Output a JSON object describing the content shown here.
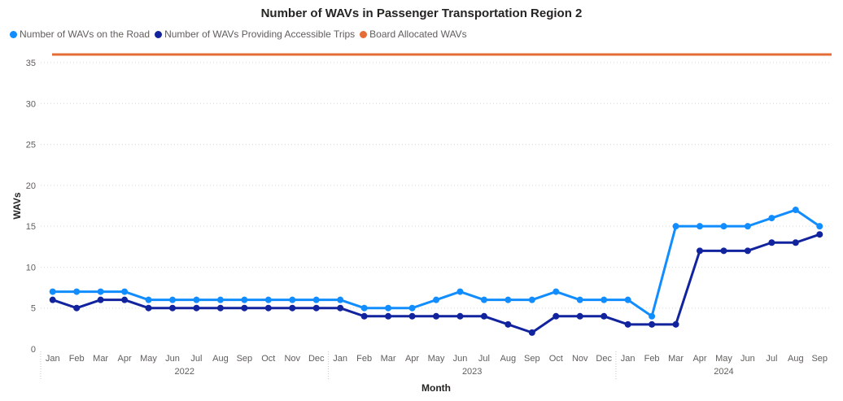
{
  "chart_data": {
    "type": "line",
    "title": "Number of WAVs in Passenger Transportation Region 2",
    "xlabel": "Month",
    "ylabel": "WAVs",
    "ylim": [
      0,
      35
    ],
    "yticks": [
      0,
      5,
      10,
      15,
      20,
      25,
      30,
      35
    ],
    "grid": true,
    "legend_position": "top-left",
    "categories": [
      "Jan",
      "Feb",
      "Mar",
      "Apr",
      "May",
      "Jun",
      "Jul",
      "Aug",
      "Sep",
      "Oct",
      "Nov",
      "Dec",
      "Jan",
      "Feb",
      "Mar",
      "Apr",
      "May",
      "Jun",
      "Jul",
      "Aug",
      "Sep",
      "Oct",
      "Nov",
      "Dec",
      "Jan",
      "Feb",
      "Mar",
      "Apr",
      "May",
      "Jun",
      "Jul",
      "Aug",
      "Sep"
    ],
    "year_groups": [
      {
        "label": "2022",
        "start": 0,
        "end": 11
      },
      {
        "label": "2023",
        "start": 12,
        "end": 23
      },
      {
        "label": "2024",
        "start": 24,
        "end": 32
      }
    ],
    "series": [
      {
        "name": "Number of WAVs on the Road",
        "color": "#118DFF",
        "markers": true,
        "values": [
          7,
          7,
          7,
          7,
          6,
          6,
          6,
          6,
          6,
          6,
          6,
          6,
          6,
          5,
          5,
          5,
          6,
          7,
          6,
          6,
          6,
          7,
          6,
          6,
          6,
          4,
          15,
          15,
          15,
          15,
          16,
          17,
          15
        ]
      },
      {
        "name": "Number of WAVs Providing Accessible Trips",
        "color": "#12239E",
        "markers": true,
        "values": [
          6,
          5,
          6,
          6,
          5,
          5,
          5,
          5,
          5,
          5,
          5,
          5,
          5,
          4,
          4,
          4,
          4,
          4,
          4,
          3,
          2,
          4,
          4,
          4,
          3,
          3,
          3,
          12,
          12,
          12,
          13,
          13,
          14
        ]
      },
      {
        "name": "Board Allocated WAVs",
        "color": "#E66C37",
        "markers": false,
        "values": [
          36,
          36,
          36,
          36,
          36,
          36,
          36,
          36,
          36,
          36,
          36,
          36,
          36,
          36,
          36,
          36,
          36,
          36,
          36,
          36,
          36,
          36,
          36,
          36,
          36,
          36,
          36,
          36,
          36,
          36,
          36,
          36,
          36
        ]
      }
    ]
  }
}
